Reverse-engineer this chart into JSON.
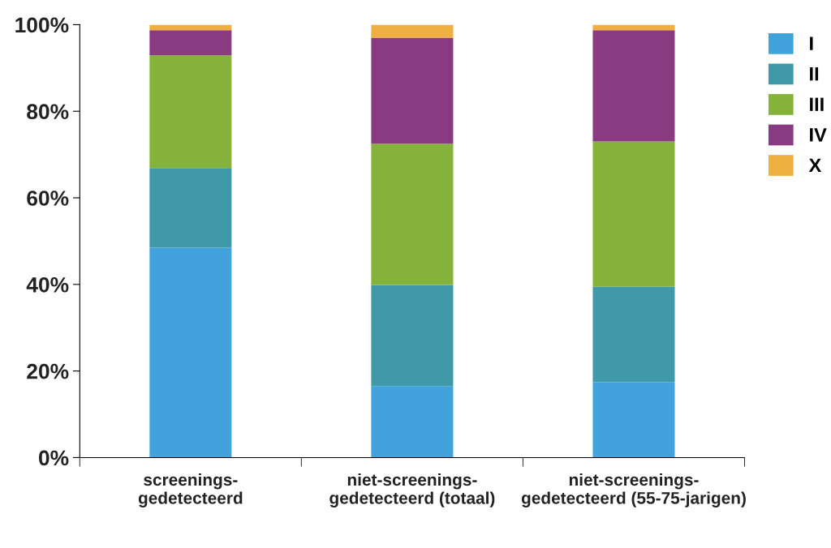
{
  "chart_data": {
    "type": "bar",
    "stacked": true,
    "categories": [
      "screenings-\ngedetecteerd",
      "niet-screenings-\ngedetecteerd (totaal)",
      "niet-screenings-\ngedetecteerd (55-75-jarigen)"
    ],
    "series": [
      {
        "name": "I",
        "color": "#42a3dc",
        "values": [
          48.5,
          16.5,
          17.4
        ]
      },
      {
        "name": "II",
        "color": "#3f99a8",
        "values": [
          18.4,
          23.4,
          22.1
        ]
      },
      {
        "name": "III",
        "color": "#84b23a",
        "values": [
          26.0,
          32.6,
          33.5
        ]
      },
      {
        "name": "IV",
        "color": "#8a3a80",
        "values": [
          5.8,
          24.5,
          25.7
        ]
      },
      {
        "name": "X",
        "color": "#f0b040",
        "values": [
          1.3,
          3.0,
          1.3
        ]
      }
    ],
    "ylim": [
      0,
      100
    ],
    "yticks": [
      {
        "value": 0,
        "label": "0%"
      },
      {
        "value": 20,
        "label": "20%"
      },
      {
        "value": 40,
        "label": "40%"
      },
      {
        "value": 60,
        "label": "60%"
      },
      {
        "value": 80,
        "label": "80%"
      },
      {
        "value": 100,
        "label": "100%"
      }
    ],
    "grid": false,
    "legend": "top right"
  }
}
